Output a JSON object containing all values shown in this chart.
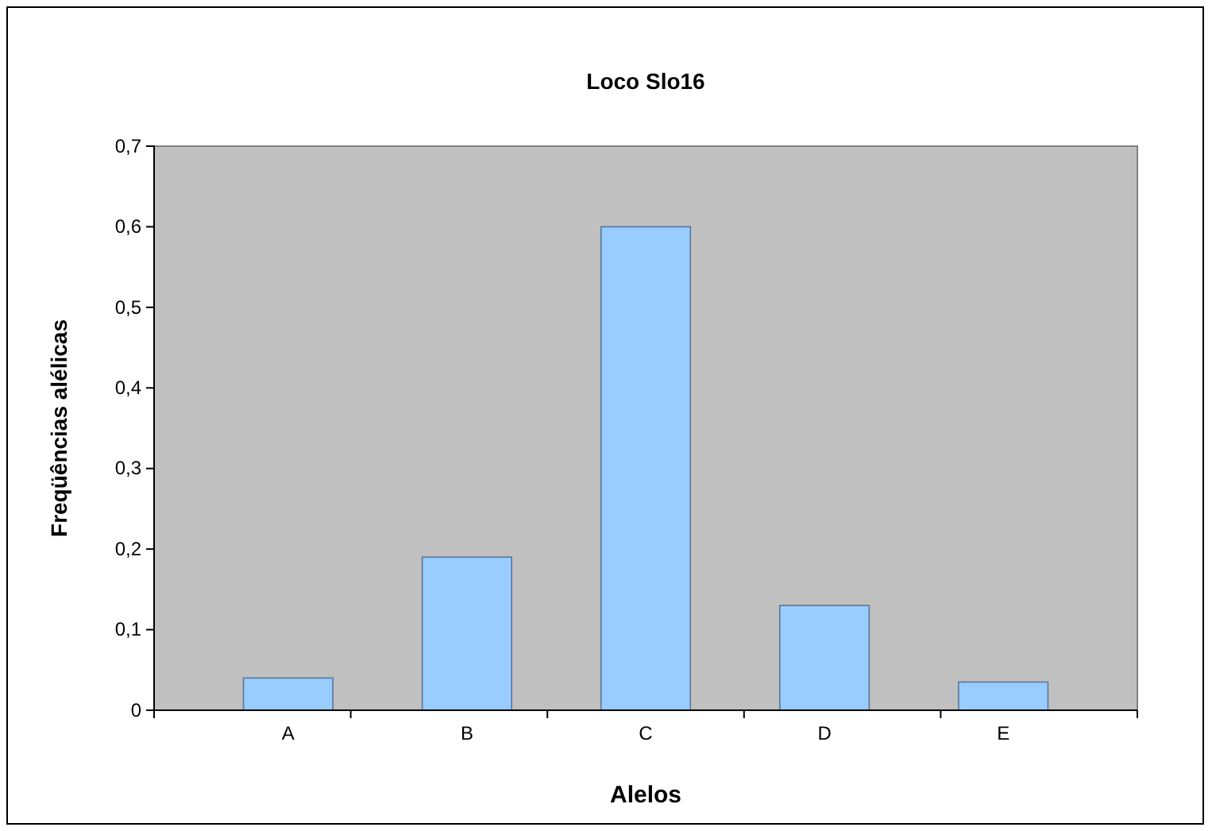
{
  "chart_data": {
    "type": "bar",
    "title": "Loco Slo16",
    "xlabel": "Alelos",
    "ylabel": "Freqüências alélicas",
    "categories": [
      "A",
      "B",
      "C",
      "D",
      "E"
    ],
    "values": [
      0.04,
      0.19,
      0.6,
      0.13,
      0.035
    ],
    "color": "#99ccff",
    "ylim": [
      0,
      0.7
    ],
    "yticks": [
      0,
      {
        "value": 0.1,
        "label": "0,1"
      },
      {
        "value": 0.2,
        "label": "0,2"
      },
      {
        "value": 0.3,
        "label": "0,3"
      },
      {
        "value": 0.4,
        "label": "0,4"
      },
      {
        "value": 0.5,
        "label": "0,5"
      },
      {
        "value": 0.6,
        "label": "0,6"
      },
      {
        "value": 0.7,
        "label": "0,7"
      }
    ],
    "grid": false
  }
}
